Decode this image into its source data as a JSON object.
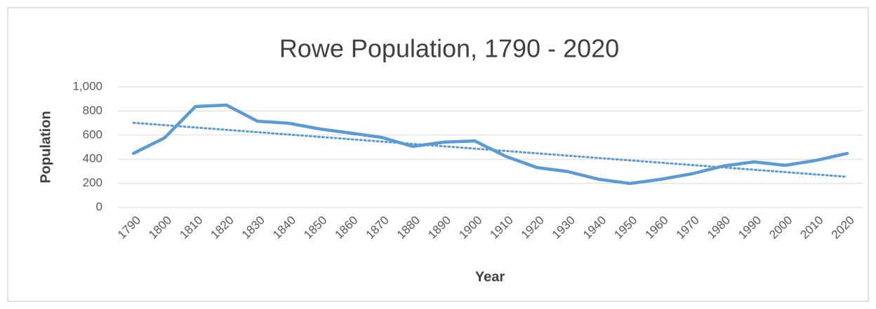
{
  "chart_data": {
    "type": "line",
    "title": "Rowe Population, 1790 - 2020",
    "x_label": "Year",
    "y_label": "Population",
    "categories": [
      "1790",
      "1800",
      "1810",
      "1820",
      "1830",
      "1840",
      "1850",
      "1860",
      "1870",
      "1880",
      "1890",
      "1900",
      "1910",
      "1920",
      "1930",
      "1940",
      "1950",
      "1960",
      "1970",
      "1980",
      "1990",
      "2000",
      "2010",
      "2020"
    ],
    "values": [
      448,
      576,
      837,
      849,
      715,
      698,
      651,
      616,
      581,
      506,
      541,
      552,
      424,
      331,
      297,
      233,
      198,
      233,
      279,
      343,
      378,
      349,
      390,
      448
    ],
    "color": "#5b9bd5",
    "trendline": "linear",
    "ylim": [
      0,
      1000
    ],
    "yticks": [
      0,
      200,
      400,
      600,
      800,
      {
        "value": 1000,
        "label": "1,000"
      }
    ],
    "grid": true
  }
}
